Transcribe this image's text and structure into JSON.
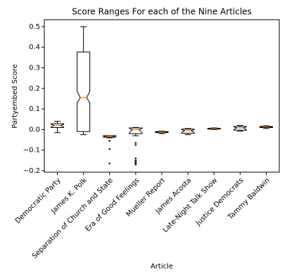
{
  "chart_data": {
    "type": "box",
    "title": "Score Ranges For each of the Nine Articles",
    "xlabel": "Article",
    "ylabel": "Partyembed Score",
    "categories": [
      "Democratic Party",
      "James K. Polk",
      "Separation of Church and State",
      "Era of Good Feelings",
      "Mueller Report",
      "James Acosta",
      "Late-Night Talk Show",
      "Justice Democrats",
      "Tammy Baldwin"
    ],
    "boxes": [
      {
        "whislo": -0.015,
        "q1": 0.01,
        "med": 0.02,
        "q3": 0.028,
        "whishi": 0.04,
        "notch": [
          0.012,
          0.026
        ],
        "fliers": []
      },
      {
        "whislo": -0.025,
        "q1": -0.01,
        "med": 0.155,
        "q3": 0.377,
        "whishi": 0.5,
        "notch": [
          0.13,
          0.185
        ],
        "fliers": []
      },
      {
        "whislo": -0.04,
        "q1": -0.037,
        "med": -0.033,
        "q3": -0.03,
        "whishi": -0.03,
        "notch": [
          -0.036,
          -0.031
        ],
        "fliers": [
          -0.055,
          -0.095,
          -0.165
        ]
      },
      {
        "whislo": -0.03,
        "q1": -0.02,
        "med": 0.0,
        "q3": 0.008,
        "whishi": 0.01,
        "notch": [
          -0.015,
          0.005
        ],
        "fliers": [
          -0.065,
          -0.075,
          -0.14,
          -0.15,
          -0.155,
          -0.16,
          -0.165,
          -0.17
        ]
      },
      {
        "whislo": -0.02,
        "q1": -0.015,
        "med": -0.012,
        "q3": -0.01,
        "whishi": -0.008,
        "notch": [
          -0.014,
          -0.011
        ],
        "fliers": []
      },
      {
        "whislo": -0.025,
        "q1": -0.018,
        "med": -0.005,
        "q3": 0.002,
        "whishi": 0.005,
        "notch": [
          -0.014,
          0.0
        ],
        "fliers": []
      },
      {
        "whislo": 0.0,
        "q1": 0.002,
        "med": 0.004,
        "q3": 0.006,
        "whishi": 0.008,
        "notch": [
          0.003,
          0.005
        ],
        "fliers": []
      },
      {
        "whislo": -0.008,
        "q1": -0.003,
        "med": 0.008,
        "q3": 0.015,
        "whishi": 0.02,
        "notch": [
          0.0,
          0.013
        ],
        "fliers": []
      },
      {
        "whislo": 0.005,
        "q1": 0.01,
        "med": 0.013,
        "q3": 0.015,
        "whishi": 0.018,
        "notch": [
          0.011,
          0.014
        ],
        "fliers": []
      }
    ],
    "ylim": [
      -0.207,
      0.534
    ],
    "yticks": [
      {
        "value": -0.2,
        "label": "−0.2"
      },
      {
        "value": -0.1,
        "label": "−0.1"
      },
      {
        "value": 0,
        "label": "0.0"
      },
      0.1,
      0.2,
      0.3,
      0.4,
      0.5
    ],
    "box_color": "#000000",
    "median_color": "#ff7f0e"
  }
}
